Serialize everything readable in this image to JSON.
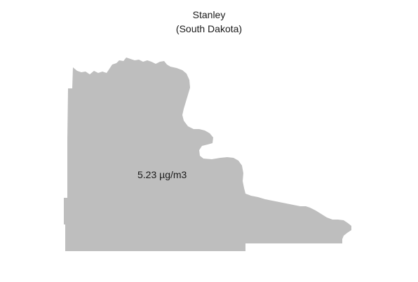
{
  "map": {
    "title": "Stanley",
    "subtitle": "(South Dakota)",
    "region_value_label": "5.23 µg/m3",
    "region_fill_color": "#bebebe",
    "background_color": "#ffffff"
  }
}
